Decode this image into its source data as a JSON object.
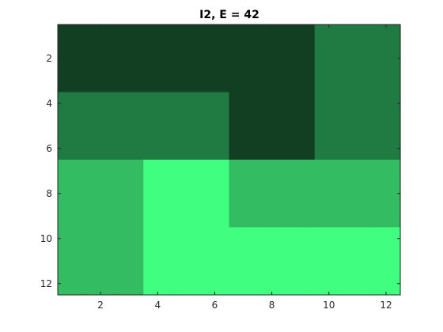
{
  "chart_data": {
    "type": "heatmap",
    "title": "I2, E = 42",
    "xlabel": "",
    "ylabel": "",
    "xlim": [
      0.5,
      12.5
    ],
    "ylim": [
      0.5,
      12.5
    ],
    "y_reversed": true,
    "x_ticks": [
      2,
      4,
      6,
      8,
      10,
      12
    ],
    "y_ticks": [
      2,
      4,
      6,
      8,
      10,
      12
    ],
    "grid": false,
    "legend": "none",
    "levels": {
      "1": "#123f22",
      "2": "#207b42",
      "3": "#33bc61",
      "4": "#40fe7f"
    },
    "matrix": [
      [
        1,
        1,
        1,
        1,
        1,
        1,
        1,
        1,
        1,
        2,
        2,
        2
      ],
      [
        1,
        1,
        1,
        1,
        1,
        1,
        1,
        1,
        1,
        2,
        2,
        2
      ],
      [
        1,
        1,
        1,
        1,
        1,
        1,
        1,
        1,
        1,
        2,
        2,
        2
      ],
      [
        2,
        2,
        2,
        2,
        2,
        2,
        1,
        1,
        1,
        2,
        2,
        2
      ],
      [
        2,
        2,
        2,
        2,
        2,
        2,
        1,
        1,
        1,
        2,
        2,
        2
      ],
      [
        2,
        2,
        2,
        2,
        2,
        2,
        1,
        1,
        1,
        2,
        2,
        2
      ],
      [
        3,
        3,
        3,
        4,
        4,
        4,
        3,
        3,
        3,
        3,
        3,
        3
      ],
      [
        3,
        3,
        3,
        4,
        4,
        4,
        3,
        3,
        3,
        3,
        3,
        3
      ],
      [
        3,
        3,
        3,
        4,
        4,
        4,
        3,
        3,
        3,
        3,
        3,
        3
      ],
      [
        3,
        3,
        3,
        4,
        4,
        4,
        4,
        4,
        4,
        4,
        4,
        4
      ],
      [
        3,
        3,
        3,
        4,
        4,
        4,
        4,
        4,
        4,
        4,
        4,
        4
      ],
      [
        3,
        3,
        3,
        4,
        4,
        4,
        4,
        4,
        4,
        4,
        4,
        4
      ]
    ]
  }
}
